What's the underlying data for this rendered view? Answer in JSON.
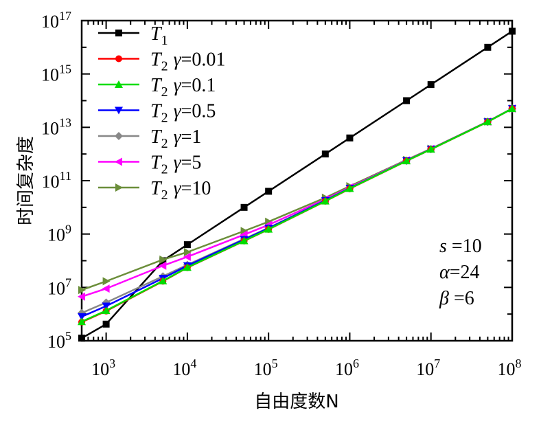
{
  "chart_data": {
    "type": "line",
    "x_scale": "log",
    "y_scale": "log",
    "xlabel": "自由度数N",
    "ylabel": "时间复杂度",
    "xlim": [
      500,
      100000000
    ],
    "ylim": [
      100000,
      100000000000000000
    ],
    "x_tick_labels": [
      {
        "value": 1000,
        "base": "10",
        "exp": "3"
      },
      {
        "value": 10000,
        "base": "10",
        "exp": "4"
      },
      {
        "value": 100000,
        "base": "10",
        "exp": "5"
      },
      {
        "value": 1000000,
        "base": "10",
        "exp": "6"
      },
      {
        "value": 10000000,
        "base": "10",
        "exp": "7"
      },
      {
        "value": 100000000,
        "base": "10",
        "exp": "8"
      }
    ],
    "y_tick_labels": [
      {
        "value": 100000,
        "base": "10",
        "exp": "5"
      },
      {
        "value": 10000000,
        "base": "10",
        "exp": "7"
      },
      {
        "value": 1000000000,
        "base": "10",
        "exp": "9"
      },
      {
        "value": 100000000000,
        "base": "10",
        "exp": "11"
      },
      {
        "value": 10000000000000,
        "base": "10",
        "exp": "13"
      },
      {
        "value": 1000000000000000,
        "base": "10",
        "exp": "15"
      },
      {
        "value": 100000000000000000,
        "base": "10",
        "exp": "17"
      }
    ],
    "x": [
      500,
      1000,
      5000,
      10000,
      50000,
      100000,
      500000,
      1000000,
      5000000,
      10000000,
      50000000,
      100000000
    ],
    "legend_position": "top-left",
    "series": [
      {
        "name_main": "T",
        "name_sub": "1",
        "name_gamma": "",
        "color": "#000000",
        "marker": "square",
        "values": [
          125000,
          420000,
          100000000,
          400000000,
          10000000000,
          40000000000,
          1000000000000,
          4000000000000,
          100000000000000,
          400000000000000,
          10000000000000000,
          40000000000000000
        ]
      },
      {
        "name_main": "T",
        "name_sub": "2",
        "name_gamma": "=0.01",
        "color": "#ff0000",
        "marker": "circle",
        "values": [
          500000,
          1300000,
          17000000,
          55000000,
          550000000,
          1500000000,
          17000000000,
          50000000000,
          550000000000,
          1500000000000,
          16000000000000,
          50000000000000
        ]
      },
      {
        "name_main": "T",
        "name_sub": "2",
        "name_gamma": "=0.1",
        "color": "#00dd00",
        "marker": "triangle-up",
        "values": [
          520000,
          1350000,
          17500000,
          56000000,
          560000000,
          1520000000,
          17200000000,
          51000000000,
          555000000000,
          1510000000000,
          16100000000000,
          50200000000000
        ]
      },
      {
        "name_main": "T",
        "name_sub": "2",
        "name_gamma": "=0.5",
        "color": "#0000ff",
        "marker": "triangle-down",
        "values": [
          800000,
          2000000,
          22000000,
          65000000,
          620000000,
          1650000000,
          18000000000,
          52000000000,
          560000000000,
          1520000000000,
          16200000000000,
          50300000000000
        ]
      },
      {
        "name_main": "T",
        "name_sub": "2",
        "name_gamma": "=1",
        "color": "#888888",
        "marker": "diamond",
        "values": [
          1100000,
          2700000,
          26000000,
          70000000,
          650000000,
          1700000000,
          18500000000,
          52500000000,
          562000000000,
          1525000000000,
          16300000000000,
          50400000000000
        ]
      },
      {
        "name_main": "T",
        "name_sub": "2",
        "name_gamma": "=5",
        "color": "#ff00ff",
        "marker": "triangle-left",
        "values": [
          4500000,
          9000000,
          65000000,
          140000000,
          950000000,
          2200000000,
          20000000000,
          56000000000,
          580000000000,
          1550000000000,
          16400000000000,
          50500000000000
        ]
      },
      {
        "name_main": "T",
        "name_sub": "2",
        "name_gamma": "=10",
        "color": "#6b8e3a",
        "marker": "triangle-right",
        "values": [
          8000000,
          17000000,
          110000000,
          210000000,
          1300000000,
          2900000000,
          23000000000,
          62000000000,
          600000000000,
          1580000000000,
          16500000000000,
          50600000000000
        ]
      }
    ],
    "annotations": [
      {
        "symbol": "s",
        "text": " =10"
      },
      {
        "symbol": "α",
        "text": "=24"
      },
      {
        "symbol": "β",
        "text": " =6"
      }
    ]
  }
}
